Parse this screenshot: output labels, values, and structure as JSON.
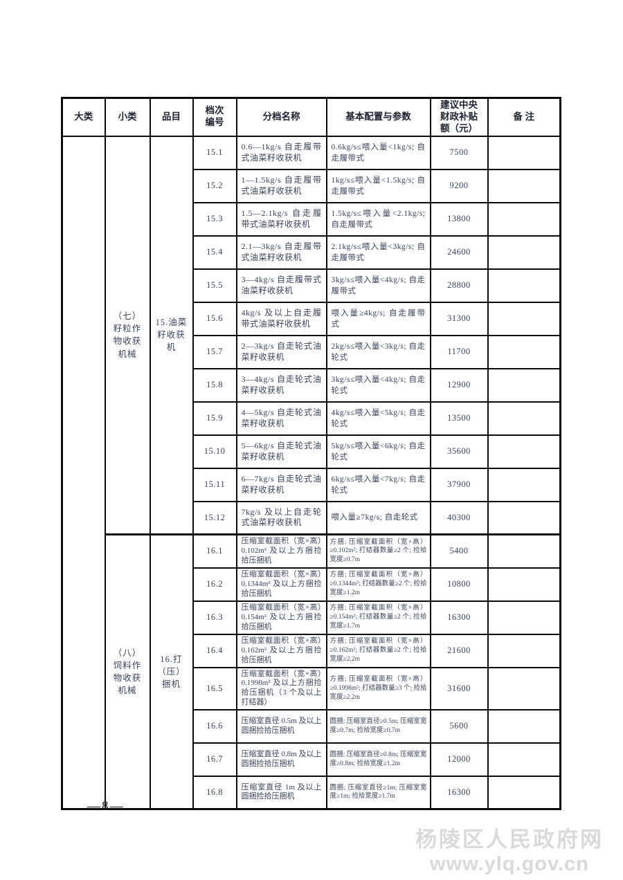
{
  "page": {
    "page_number": "—8—",
    "watermark_line1": "杨陵区人民政府网",
    "watermark_line2": "www.ylq.gov.cn"
  },
  "table": {
    "headers": {
      "major": "大类",
      "sub": "小类",
      "item": "品目",
      "code": "档次\n编号",
      "name": "分档名称",
      "config": "基本配置与参数",
      "subsidy": "建议中央\n财政补贴\n额（元）",
      "remark": "备  注"
    },
    "groups": [
      {
        "major": "",
        "subclass": "（七）籽粒作物收获机械",
        "item": "15.油菜籽收获机",
        "rows": [
          {
            "code": "15.1",
            "name": "0.6—1kg/s 自走履带式油菜籽收获机",
            "config": "0.6kg/s≤喂入量<1kg/s; 自走履带式",
            "subsidy": "7500",
            "remark": ""
          },
          {
            "code": "15.2",
            "name": "1—1.5kg/s 自走履带式油菜籽收获机",
            "config": "1kg/s≤喂入量<1.5kg/s; 自走履带式",
            "subsidy": "9200",
            "remark": ""
          },
          {
            "code": "15.3",
            "name": "1.5—2.1kg/s 自走履带式油菜籽收获机",
            "config": "1.5kg/s≤喂入量<2.1kg/s; 自走履带式",
            "subsidy": "13800",
            "remark": ""
          },
          {
            "code": "15.4",
            "name": "2.1—3kg/s 自走履带式油菜籽收获机",
            "config": "2.1kg/s≤喂入量<3kg/s; 自走履带式",
            "subsidy": "24600",
            "remark": ""
          },
          {
            "code": "15.5",
            "name": "3—4kg/s 自走履带式油菜籽收获机",
            "config": "3kg/s≤喂入量<4kg/s; 自走履带式",
            "subsidy": "28800",
            "remark": ""
          },
          {
            "code": "15.6",
            "name": "4kg/s 及以上自走履带式油菜籽收获机",
            "config": "喂入量≥4kg/s; 自走履带式",
            "subsidy": "31300",
            "remark": ""
          },
          {
            "code": "15.7",
            "name": "2—3kg/s 自走轮式油菜籽收获机",
            "config": "2kg/s≤喂入量<3kg/s; 自走轮式",
            "subsidy": "11700",
            "remark": ""
          },
          {
            "code": "15.8",
            "name": "3—4kg/s 自走轮式油菜籽收获机",
            "config": "3kg/s≤喂入量<4kg/s; 自走轮式",
            "subsidy": "12900",
            "remark": ""
          },
          {
            "code": "15.9",
            "name": "4—5kg/s 自走轮式油菜籽收获机",
            "config": "4kg/s≤喂入量<5kg/s; 自走轮式",
            "subsidy": "13500",
            "remark": ""
          },
          {
            "code": "15.10",
            "name": "5—6kg/s 自走轮式油菜籽收获机",
            "config": "5kg/s≤喂入量<6kg/s; 自走轮式",
            "subsidy": "35600",
            "remark": ""
          },
          {
            "code": "15.11",
            "name": "6—7kg/s 自走轮式油菜籽收获机",
            "config": "6kg/s≤喂入量<7kg/s; 自走轮式",
            "subsidy": "37900",
            "remark": ""
          },
          {
            "code": "15.12",
            "name": "7kg/s 及以上自走轮式油菜籽收获机",
            "config": "喂入量≥7kg/s; 自走轮式",
            "subsidy": "40300",
            "remark": ""
          }
        ]
      },
      {
        "major": "",
        "subclass": "（八）饲料作物收获机械",
        "item": "16.打（压）捆机",
        "rows": [
          {
            "code": "16.1",
            "name": "压缩室截面积（宽×高）0.102m² 及以上方捆捡拾压捆机",
            "config": "方捆; 压缩室截面积（宽×高）≥0.102m²; 打结器数量≥2 个; 捡拾宽度≥0.7m",
            "subsidy": "5400",
            "remark": ""
          },
          {
            "code": "16.2",
            "name": "压缩室截面积（宽×高）0.1344m² 及以上方捆捡拾压捆机",
            "config": "方捆; 压缩室截面积（宽×高）≥0.1344m²; 打结器数量≥2 个; 捡拾宽度≥1.2m",
            "subsidy": "10800",
            "remark": ""
          },
          {
            "code": "16.3",
            "name": "压缩室截面积（宽×高）0.154m² 及以上方捆捡拾压捆机",
            "config": "方捆; 压缩室截面积（宽×高）≥0.154m²; 打结器数量≥2 个; 捡拾宽度≥1.7m",
            "subsidy": "16300",
            "remark": ""
          },
          {
            "code": "16.4",
            "name": "压缩室截面积（宽×高）0.162m² 及以上方捆捡拾压捆机",
            "config": "方捆; 压缩室截面积（宽×高）≥0.162m²; 打结器数量≥2 个; 捡拾宽度≥2.2m",
            "subsidy": "21600",
            "remark": ""
          },
          {
            "code": "16.5",
            "name": "压缩室截面积（宽×高）0.1998m² 及以上方捆捡拾压捆机（3 个及以上打结器）",
            "config": "方捆; 压缩室截面积（宽×高）≥0.1998m²; 打结器数量≥3 个; 捡拾宽度≥2.2m",
            "subsidy": "31600",
            "remark": ""
          },
          {
            "code": "16.6",
            "name": "压缩室直径 0.5m 及以上圆捆捡拾压捆机",
            "config": "圆捆; 压缩室直径≥0.5m; 压缩室宽度≥0.7m; 捡拾宽度≥0.7m",
            "subsidy": "5600",
            "remark": ""
          },
          {
            "code": "16.7",
            "name": "压缩室直径 0.8m 及以上圆捆捡拾压捆机",
            "config": "圆捆; 压缩室直径≥0.8m; 压缩室宽度≥0.8m; 捡拾宽度≥1.2m",
            "subsidy": "12000",
            "remark": ""
          },
          {
            "code": "16.8",
            "name": "压缩室直径 1m 及以上圆捆捡拾压捆机",
            "config": "圆捆; 压缩室直径≥1m; 压缩室宽度≥1m; 捡拾宽度≥1.7m",
            "subsidy": "16300",
            "remark": ""
          }
        ]
      }
    ]
  }
}
